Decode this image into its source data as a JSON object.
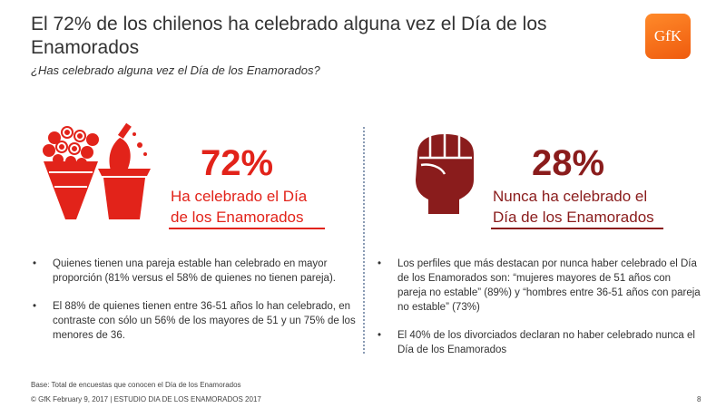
{
  "header": {
    "title": "El 72% de los chilenos ha celebrado alguna vez el Día de los Enamorados",
    "subtitle": "¿Has celebrado alguna vez el Día de los Enamorados?",
    "logo_text": "GfK"
  },
  "left": {
    "percent": "72%",
    "label_line1": "Ha celebrado el Día",
    "label_line2": "de los Enamorados",
    "accent_color": "#e2231a",
    "icon": "flower-bouquet-and-champagne-bucket-icon",
    "bullets": [
      "Quienes tienen una pareja estable han celebrado en mayor proporción (81% versus el 58% de quienes no tienen pareja).",
      "El 88% de quienes tienen entre 36-51 años lo han celebrado, en contraste con sólo un 56% de los mayores de 51 y un 75% de los menores de 36."
    ]
  },
  "right": {
    "percent": "28%",
    "label_line1": "Nunca ha celebrado el",
    "label_line2": "Día de los Enamorados",
    "accent_color": "#8a1c1c",
    "icon": "raised-fist-icon",
    "bullets": [
      "Los perfiles que más destacan por nunca haber celebrado el Día de los Enamorados son: “mujeres mayores de 51 años con pareja no estable” (89%) y “hombres entre 36-51 años con pareja no estable” (73%)",
      "El 40% de los divorciados declaran no haber celebrado nunca el Día de los Enamorados"
    ]
  },
  "bullet_char": "•",
  "footer": {
    "base": "Base: Total de encuestas que conocen el Día de los Enamorados",
    "copyright": "© GfK February 9, 2017 | ESTUDIO DIA DE LOS ENAMORADOS 2017",
    "page": "8"
  }
}
